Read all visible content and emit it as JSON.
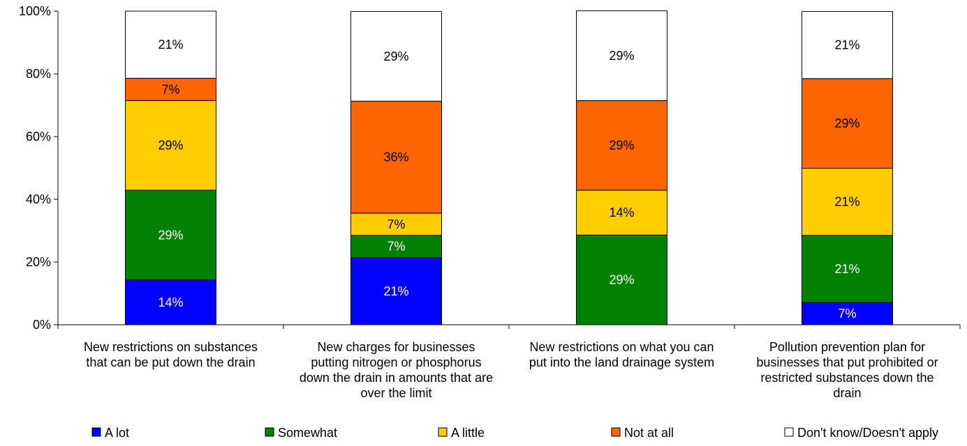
{
  "chart_data": {
    "type": "bar",
    "stacked": true,
    "percent_stacked": true,
    "title": "",
    "xlabel": "",
    "ylabel": "",
    "ylim": [
      0,
      100
    ],
    "yticks": [
      0,
      20,
      40,
      60,
      80,
      100
    ],
    "ytick_labels": [
      "0%",
      "20%",
      "40%",
      "60%",
      "80%",
      "100%"
    ],
    "grid": false,
    "legend_position": "bottom",
    "categories": [
      [
        "New restrictions on substances",
        "that can be put down the drain"
      ],
      [
        "New charges for businesses",
        "putting nitrogen or phosphorus",
        "down the drain in amounts that are",
        "over the limit"
      ],
      [
        "New restrictions on what you can",
        "put into the land drainage system"
      ],
      [
        "Pollution prevention plan for",
        "businesses that put prohibited or",
        "restricted substances down the",
        "drain"
      ]
    ],
    "series": [
      {
        "name": "A lot",
        "color": "#0000FF",
        "label_color": "#FFFFFF",
        "values": [
          14.3,
          21.4,
          0,
          7.1
        ],
        "labels": [
          "14%",
          "21%",
          "",
          "7%"
        ]
      },
      {
        "name": "Somewhat",
        "color": "#008000",
        "label_color": "#FFFFFF",
        "values": [
          28.6,
          7.1,
          28.6,
          21.4
        ],
        "labels": [
          "29%",
          "7%",
          "29%",
          "21%"
        ]
      },
      {
        "name": "A little",
        "color": "#FFCC00",
        "label_color": "#000000",
        "values": [
          28.6,
          7.1,
          14.3,
          21.4
        ],
        "labels": [
          "29%",
          "7%",
          "14%",
          "21%"
        ]
      },
      {
        "name": "Not at all",
        "color": "#FF6600",
        "label_color": "#000000",
        "values": [
          7.1,
          35.7,
          28.6,
          28.6
        ],
        "labels": [
          "7%",
          "36%",
          "29%",
          "29%"
        ]
      },
      {
        "name": "Don't know/Doesn't apply",
        "color": "#FFFFFF",
        "label_color": "#000000",
        "values": [
          21.4,
          28.6,
          28.6,
          21.4
        ],
        "labels": [
          "21%",
          "29%",
          "29%",
          "21%"
        ]
      }
    ]
  }
}
